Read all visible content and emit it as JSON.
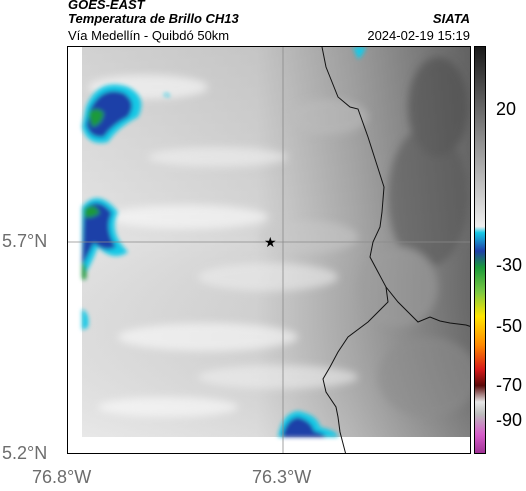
{
  "header": {
    "line1": "GOES-EAST",
    "line2": "Temperatura de Brillo CH13",
    "line3": "Vía Medellín - Quibdó 50km",
    "source": "SIATA",
    "timestamp": "2024-02-19 15:19"
  },
  "axes": {
    "lat_ticks": [
      "5.7°N",
      "5.2°N"
    ],
    "lon_ticks": [
      "76.8°W",
      "76.3°W"
    ]
  },
  "colorbar": {
    "ticks": [
      "20",
      "-30",
      "-50",
      "-70",
      "-90"
    ]
  },
  "colors": {
    "cloud_blue": "#1f3fa8",
    "cloud_cyan": "#17c9e6",
    "cloud_green": "#1a9a3a",
    "grid_line": "#8a8a8a"
  },
  "icons": {
    "marker": "star-marker-icon"
  }
}
